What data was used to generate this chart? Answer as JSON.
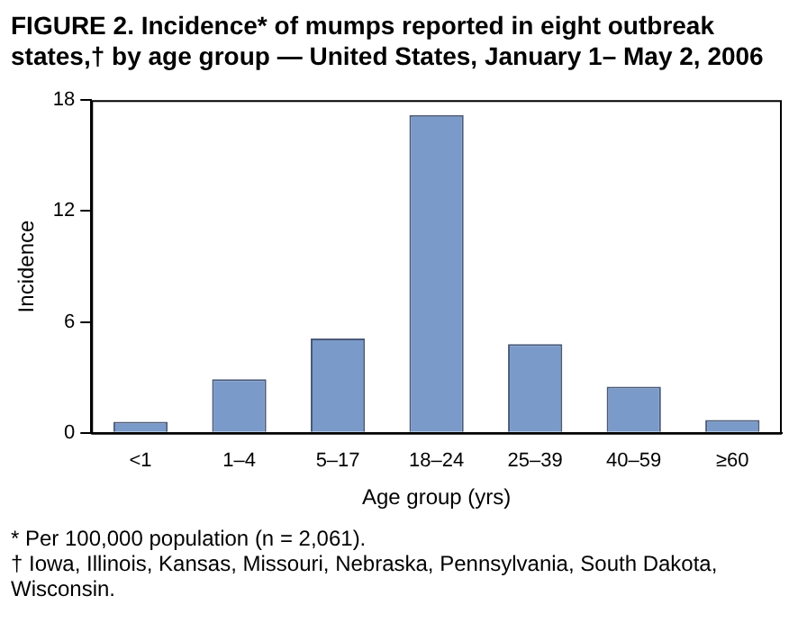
{
  "chart_data": {
    "type": "bar",
    "title": "FIGURE 2. Incidence* of mumps reported in eight outbreak states,† by age group — United States, January 1– May 2, 2006",
    "categories": [
      "<1",
      "1–4",
      "5–17",
      "18–24",
      "25–39",
      "40–59",
      "≥60"
    ],
    "values": [
      0.6,
      2.9,
      5.1,
      17.2,
      4.8,
      2.5,
      0.7
    ],
    "color": "#7a9ac9",
    "ylim": [
      0,
      18
    ],
    "yticks": [
      0,
      6,
      12,
      18
    ],
    "grid": false,
    "legend": false,
    "xlabel": "Age group (yrs)",
    "ylabel": "Incidence",
    "annotations": [
      "* Per 100,000 population (n = 2,061).",
      "† Iowa, Illinois, Kansas, Missouri, Nebraska, Pennsylvania, South Dakota, Wisconsin."
    ]
  }
}
